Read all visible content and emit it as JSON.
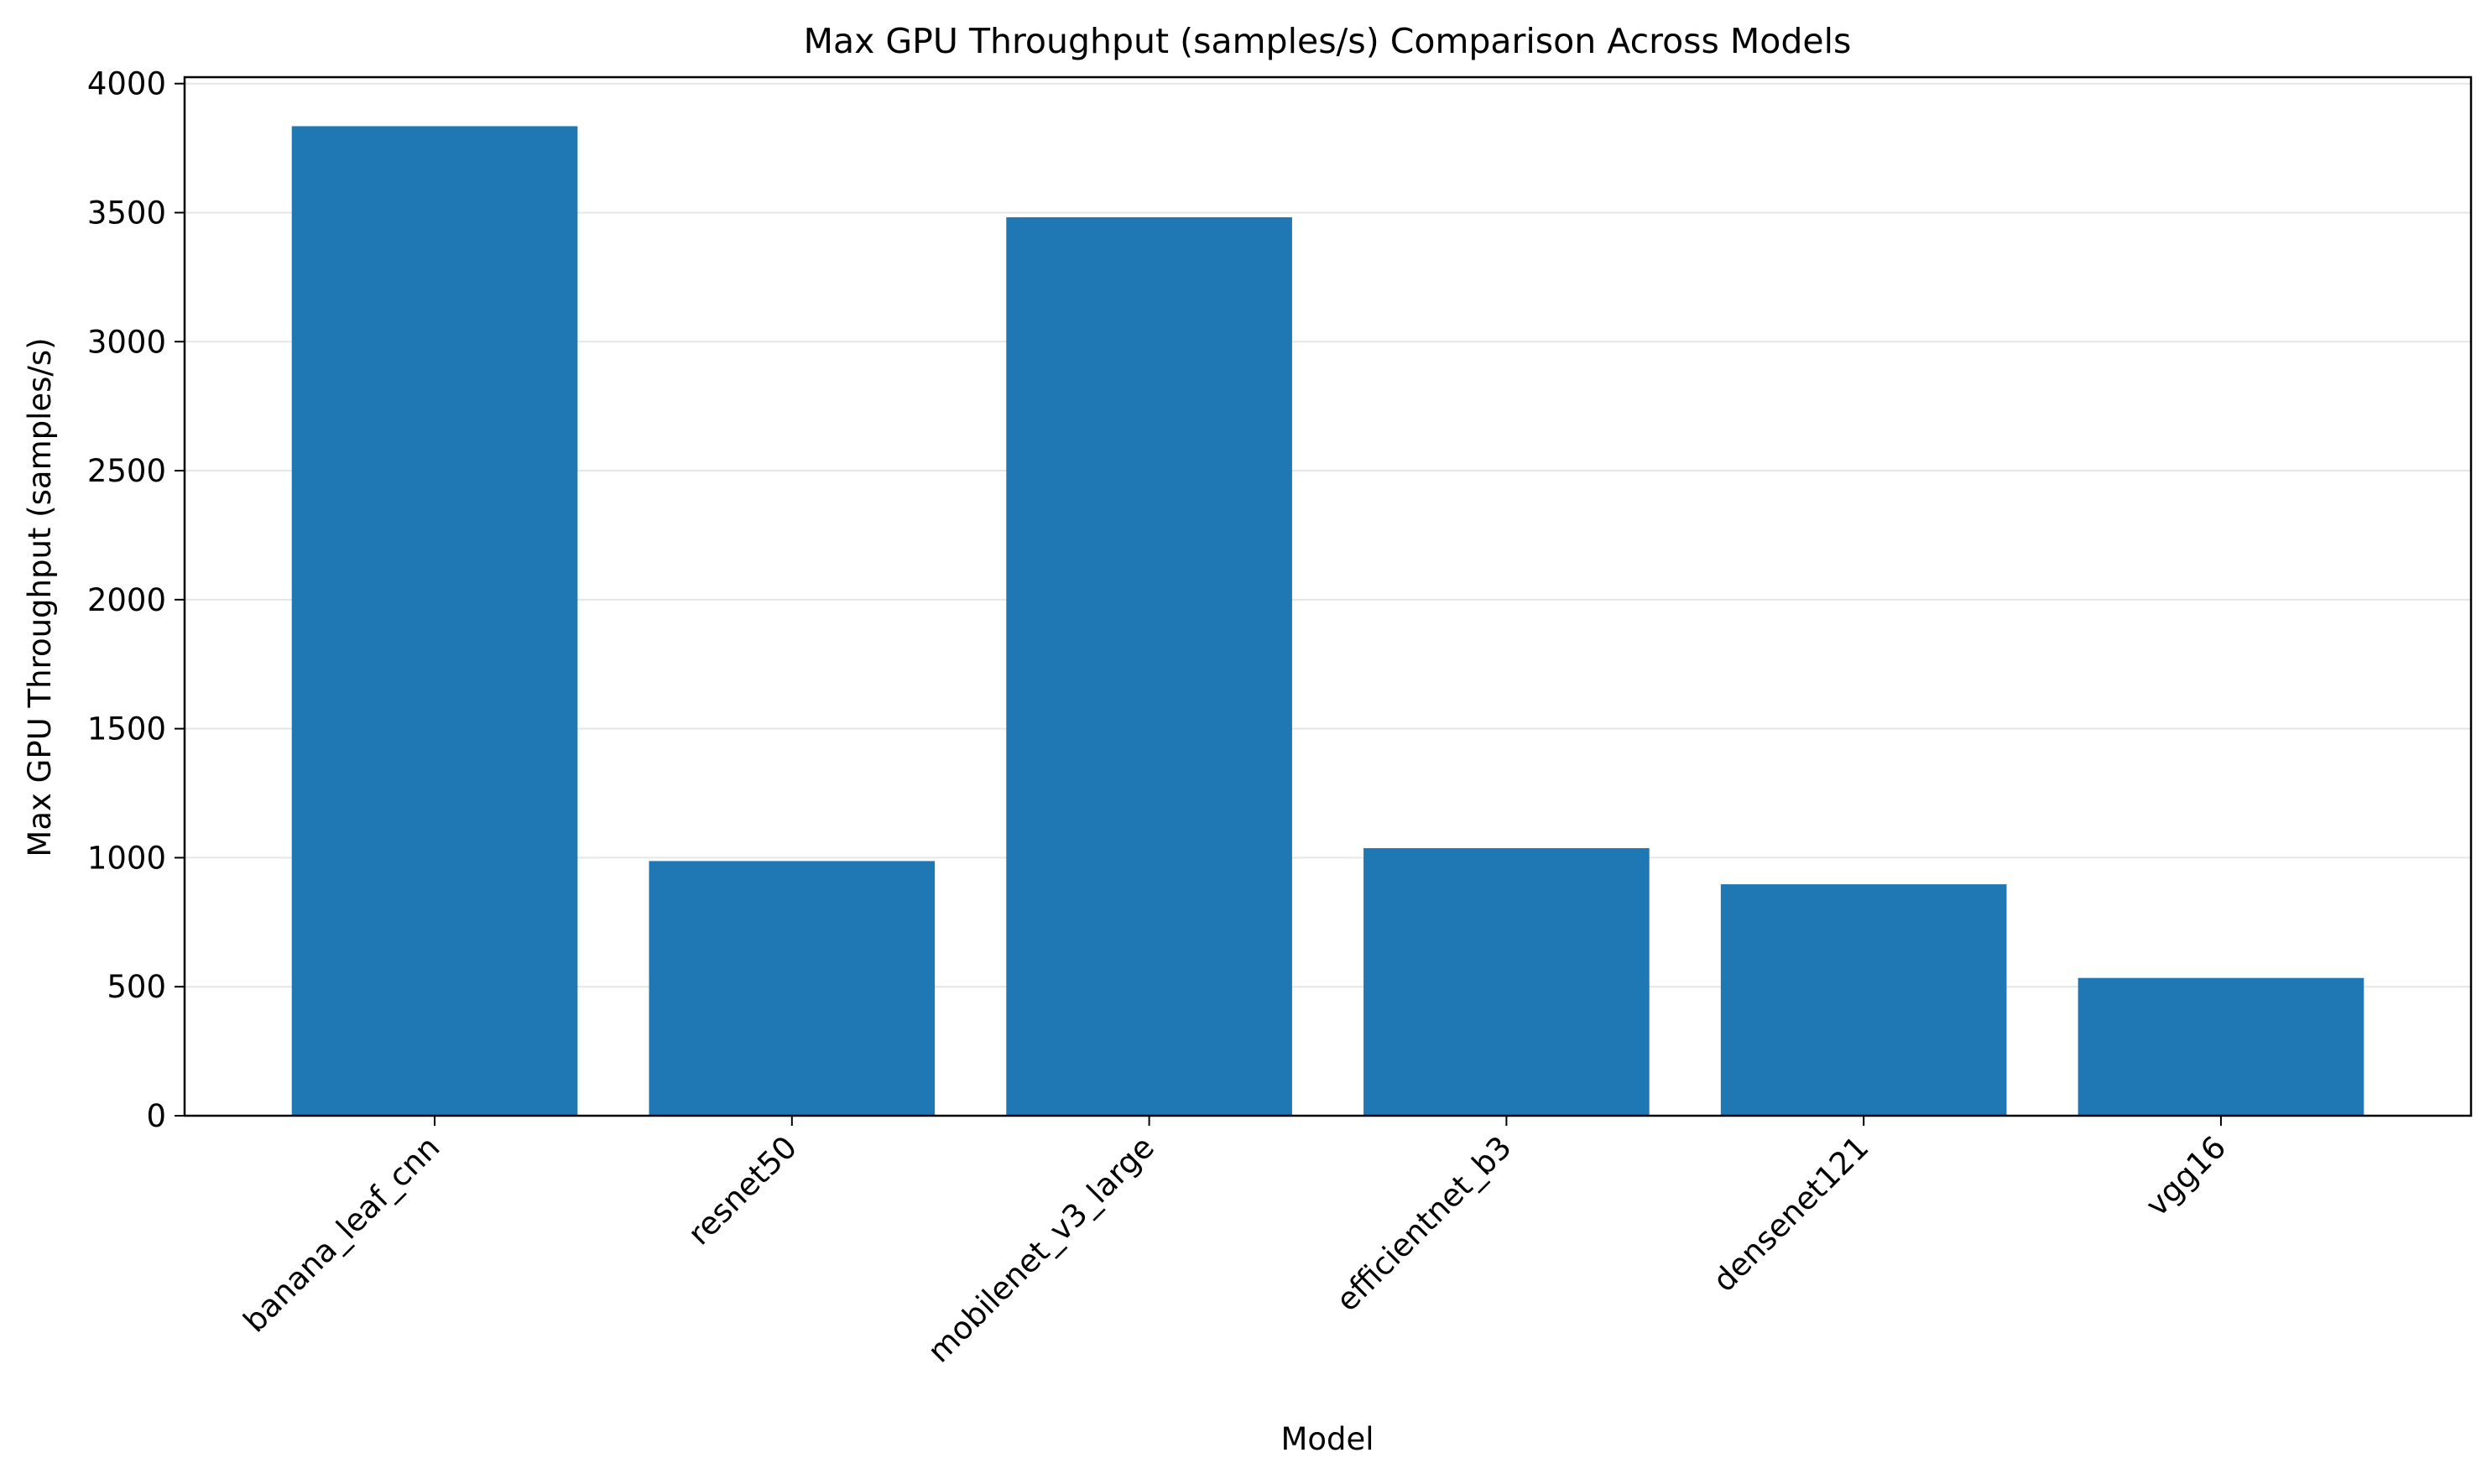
{
  "chart_data": {
    "type": "bar",
    "title": "Max GPU Throughput (samples/s) Comparison Across Models",
    "xlabel": "Model",
    "ylabel": "Max GPU Throughput (samples/s)",
    "categories": [
      "banana_leaf_cnn",
      "resnet50",
      "mobilenet_v3_large",
      "efficientnet_b3",
      "densenet121",
      "vgg16"
    ],
    "values": [
      3835,
      987,
      3482,
      1037,
      897,
      534
    ],
    "ylim": [
      0,
      4025
    ],
    "yticks": [
      0,
      500,
      1000,
      1500,
      2000,
      2500,
      3000,
      3500,
      4000
    ],
    "grid": "y",
    "legend": "none",
    "colors": {
      "bar": "#1f77b4",
      "grid": "#e5e5e5",
      "axis": "#000000"
    }
  }
}
